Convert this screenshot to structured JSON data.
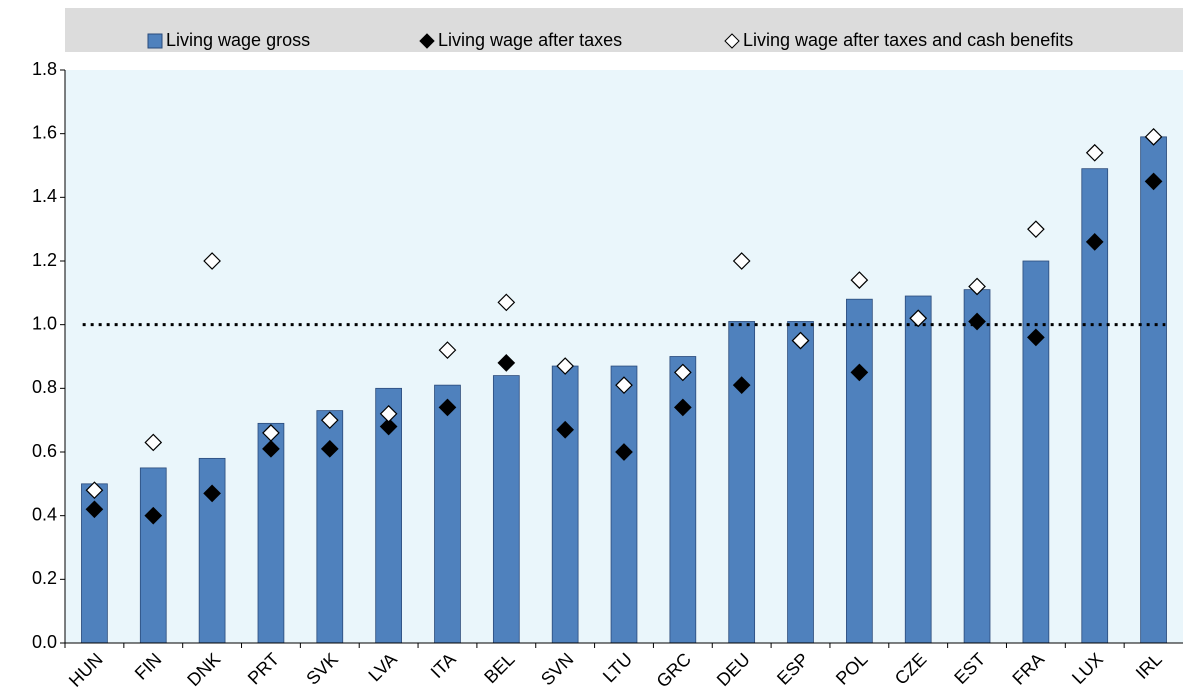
{
  "chart_data": {
    "type": "bar",
    "categories": [
      "HUN",
      "FIN",
      "DNK",
      "PRT",
      "SVK",
      "LVA",
      "ITA",
      "BEL",
      "SVN",
      "LTU",
      "GRC",
      "DEU",
      "ESP",
      "POL",
      "CZE",
      "EST",
      "FRA",
      "LUX",
      "IRL"
    ],
    "series": [
      {
        "name": "Living wage gross",
        "color": "#4f81bd",
        "marker": "bar",
        "values": [
          0.5,
          0.55,
          0.58,
          0.69,
          0.73,
          0.8,
          0.81,
          0.84,
          0.87,
          0.87,
          0.9,
          1.01,
          1.01,
          1.08,
          1.09,
          1.11,
          1.2,
          1.49,
          1.59
        ]
      },
      {
        "name": "Living wage after taxes",
        "color": "#000000",
        "marker": "diamond",
        "values": [
          0.42,
          0.4,
          0.47,
          0.61,
          0.61,
          0.68,
          0.74,
          0.88,
          0.67,
          0.6,
          0.74,
          0.81,
          0.95,
          0.85,
          1.02,
          1.01,
          0.96,
          1.26,
          1.45
        ]
      },
      {
        "name": "Living wage after taxes and cash benefits",
        "color": "#ffffff",
        "marker": "diamond",
        "values": [
          0.48,
          0.63,
          1.2,
          0.66,
          0.7,
          0.72,
          0.92,
          1.07,
          0.87,
          0.81,
          0.85,
          1.2,
          0.95,
          1.14,
          1.02,
          1.12,
          1.3,
          1.54,
          1.59
        ]
      }
    ],
    "reference_line": 1.0,
    "ylim": [
      0,
      1.8
    ],
    "yticks": [
      {
        "value": 0,
        "label": "0.0"
      },
      {
        "value": 0.2,
        "label": "0.2"
      },
      {
        "value": 0.4,
        "label": "0.4"
      },
      {
        "value": 0.6,
        "label": "0.6"
      },
      {
        "value": 0.8,
        "label": "0.8"
      },
      {
        "value": 1,
        "label": "1.0"
      },
      {
        "value": 1.2,
        "label": "1.2"
      },
      {
        "value": 1.4,
        "label": "1.4"
      },
      {
        "value": 1.6,
        "label": "1.6"
      },
      {
        "value": 1.8,
        "label": "1.8"
      }
    ]
  }
}
